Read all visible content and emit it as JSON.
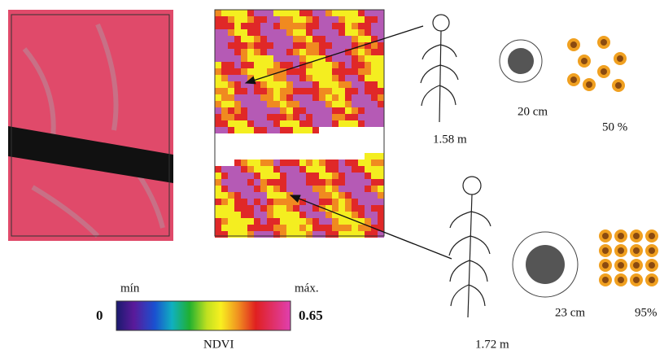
{
  "legend": {
    "min_label": "mín",
    "max_label": "máx.",
    "min_value": "0",
    "max_value": "0.65",
    "title": "NDVI"
  },
  "plants": [
    {
      "height": "1.58 m",
      "head_diameter": "20 cm",
      "cover": "50 %"
    },
    {
      "height": "1.72 m",
      "head_diameter": "23 cm",
      "cover": "95%"
    }
  ]
}
